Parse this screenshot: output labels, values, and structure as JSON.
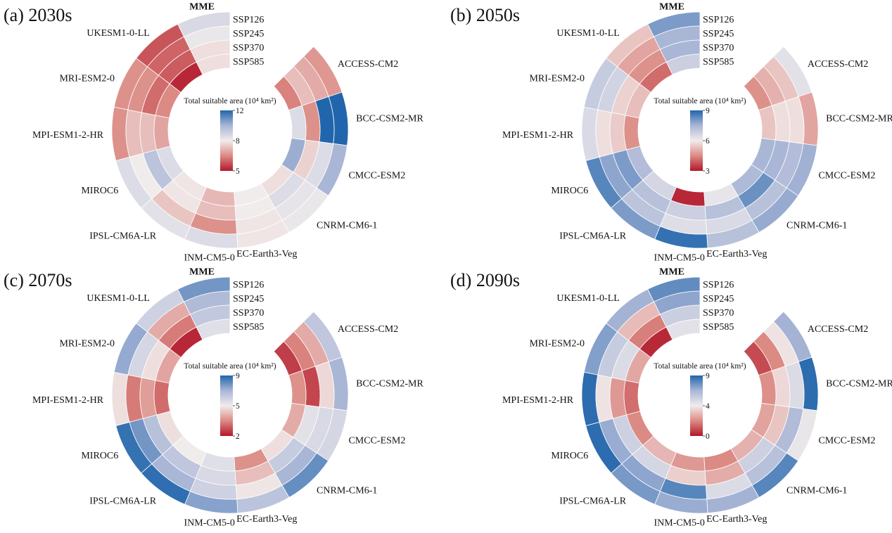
{
  "chart_data": {
    "type": "heatmap",
    "layout": "circular",
    "colorbar_title": "Total suitable area (10⁴ km²)",
    "models": [
      "ACCESS-CM2",
      "BCC-CSM2-MR",
      "CMCC-ESM2",
      "CNRM-CM6-1",
      "EC-Earth3-Veg",
      "INM-CM5-0",
      "IPSL-CM6A-LR",
      "MIROC6",
      "MPI-ESM1-2-HR",
      "MRI-ESM2-0",
      "UKESM1-0-LL",
      "MME"
    ],
    "scenarios": [
      "SSP126",
      "SSP245",
      "SSP370",
      "SSP585"
    ],
    "colormap": {
      "low": "#b2182b",
      "mid": "#f1ecec",
      "high": "#2166ac"
    },
    "panels": [
      {
        "title": "(a) 2030s",
        "cbar": {
          "min": 5,
          "mid": 8,
          "max": 12
        },
        "values": [
          [
            6.7,
            7.0,
            7.3,
            6.4
          ],
          [
            12,
            12,
            6.6,
            8.6
          ],
          [
            10.0,
            8.6,
            7.6,
            10.2
          ],
          [
            8.2,
            8.3,
            8.6,
            7.8
          ],
          [
            7.9,
            7.9,
            8.0,
            8.0
          ],
          [
            8.6,
            6.6,
            7.3,
            7.2
          ],
          [
            8.4,
            7.4,
            7.9,
            7.9
          ],
          [
            8.6,
            8.0,
            9.5,
            8.6
          ],
          [
            6.6,
            7.3,
            7.3,
            6.9
          ],
          [
            6.6,
            6.6,
            6.1,
            6.5
          ],
          [
            5.8,
            6.0,
            5.9,
            5.2
          ],
          [
            8.7,
            8.2,
            7.8,
            7.8
          ]
        ]
      },
      {
        "title": "(b) 2050s",
        "cbar": {
          "min": 3,
          "mid": 6,
          "max": 9
        },
        "values": [
          [
            6.3,
            5.4,
            5.1,
            4.6
          ],
          [
            4.9,
            5.8,
            5.8,
            5.4
          ],
          [
            7.6,
            7.3,
            7.5,
            7.5
          ],
          [
            7.7,
            7.2,
            8.2,
            7.4
          ],
          [
            7.2,
            6.5,
            7.2,
            6.2
          ],
          [
            8.8,
            6.4,
            6.8,
            3.2
          ],
          [
            8.0,
            7.1,
            7.2,
            6.6
          ],
          [
            8.4,
            7.8,
            8.0,
            7.3
          ],
          [
            6.5,
            5.8,
            5.5,
            4.6
          ],
          [
            6.9,
            6.7,
            5.6,
            5.3
          ],
          [
            5.4,
            4.9,
            4.6,
            4.1
          ],
          [
            8.0,
            7.5,
            7.5,
            6.8
          ]
        ]
      },
      {
        "title": "(c) 2070s",
        "cbar": {
          "min": 2,
          "mid": 5,
          "max": 9
        },
        "values": [
          [
            6.4,
            4.0,
            3.4,
            2.5
          ],
          [
            7.0,
            4.7,
            2.6,
            3.6
          ],
          [
            5.8,
            5.7,
            5.4,
            4.0
          ],
          [
            8.0,
            7.0,
            6.2,
            4.8
          ],
          [
            6.5,
            4.9,
            4.3,
            3.6
          ],
          [
            7.5,
            6.0,
            5.7,
            5.5
          ],
          [
            8.8,
            7.0,
            6.4,
            5.0
          ],
          [
            8.7,
            7.8,
            6.6,
            4.8
          ],
          [
            4.8,
            3.3,
            3.8,
            3.1
          ],
          [
            7.3,
            5.8,
            4.8,
            3.9
          ],
          [
            6.0,
            4.0,
            3.3,
            2.2
          ],
          [
            7.8,
            6.8,
            6.3,
            5.5
          ]
        ]
      },
      {
        "title": "(d) 2090s",
        "cbar": {
          "min": 0,
          "mid": 4,
          "max": 9
        },
        "values": [
          [
            6.6,
            3.8,
            2.0,
            0.9
          ],
          [
            8.8,
            4.8,
            3.6,
            2.1
          ],
          [
            4.3,
            6.2,
            3.2,
            2.5
          ],
          [
            8.0,
            6.0,
            5.3,
            2.8
          ],
          [
            6.6,
            4.8,
            2.7,
            2.0
          ],
          [
            6.8,
            8.0,
            3.4,
            2.3
          ],
          [
            7.4,
            7.0,
            5.0,
            2.9
          ],
          [
            8.8,
            6.8,
            5.3,
            2.0
          ],
          [
            8.8,
            3.8,
            2.3,
            1.5
          ],
          [
            7.2,
            5.5,
            4.8,
            2.6
          ],
          [
            6.6,
            3.0,
            1.8,
            0.3
          ],
          [
            7.8,
            7.0,
            5.4,
            4.5
          ]
        ]
      }
    ]
  }
}
